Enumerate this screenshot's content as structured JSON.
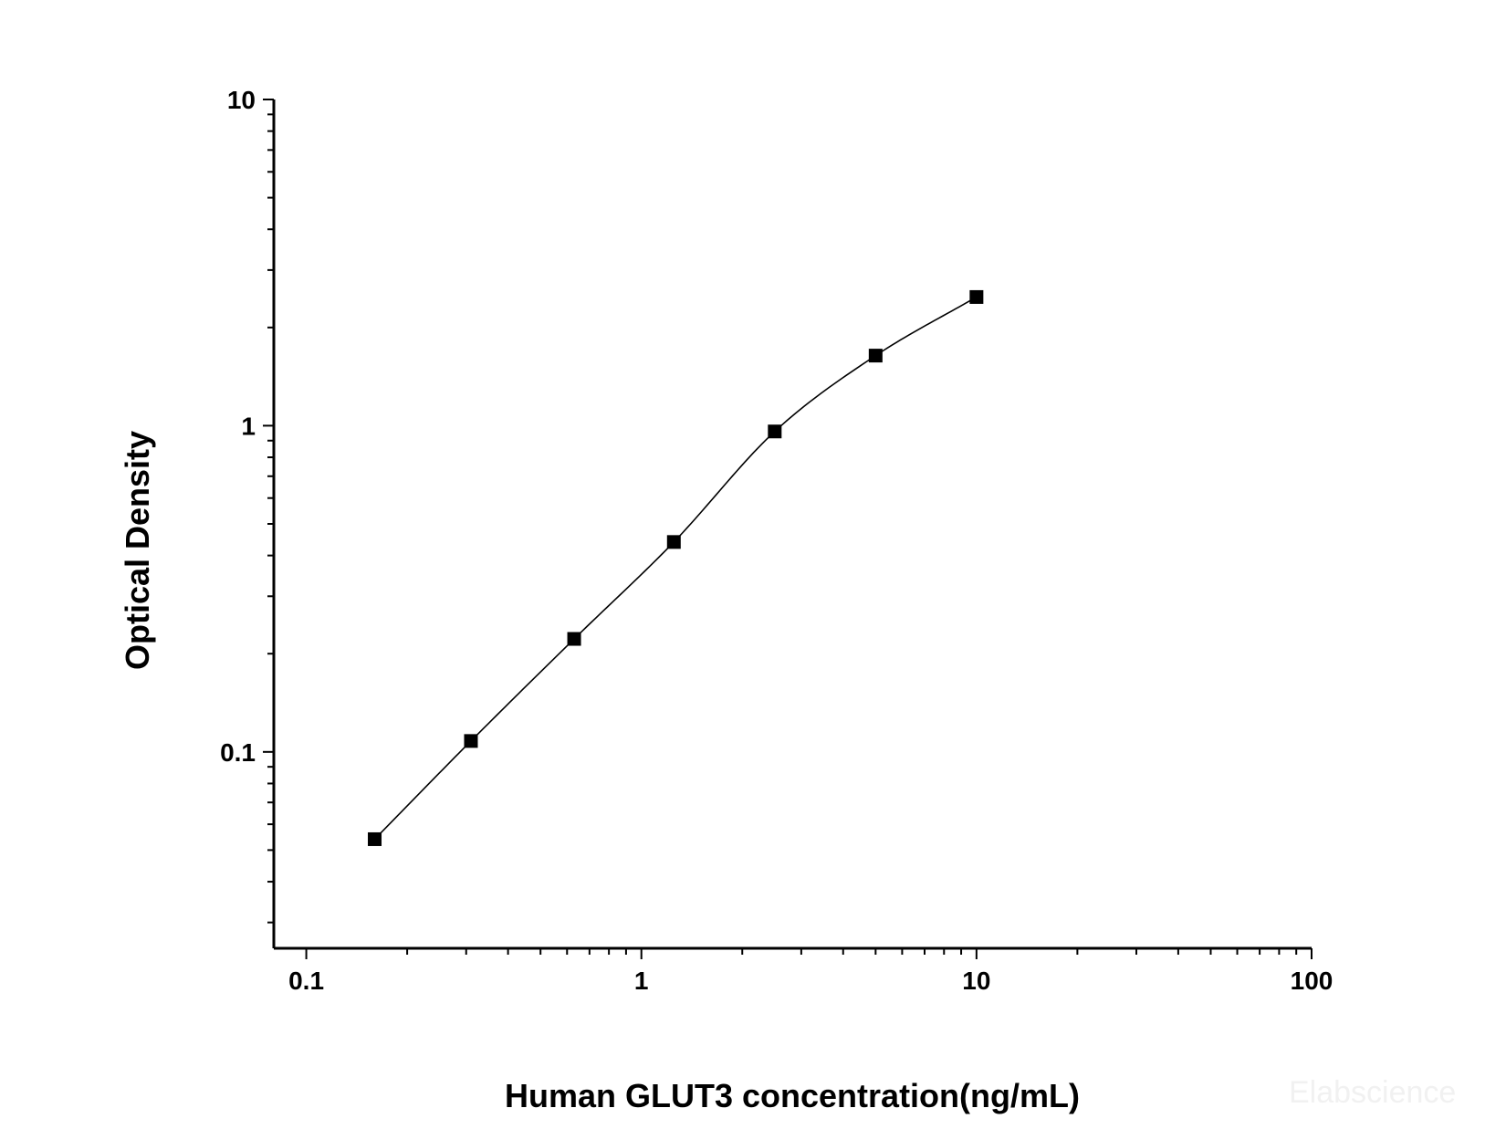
{
  "chart_data": {
    "type": "scatter",
    "xlabel": "Human GLUT3 concentration(ng/mL)",
    "ylabel": "Optical Density",
    "xscale": "log",
    "yscale": "log",
    "xlim": [
      0.08,
      100
    ],
    "ylim": [
      0.025,
      10
    ],
    "x_ticks": [
      {
        "value": 0.1,
        "label": "0.1"
      },
      {
        "value": 1,
        "label": "1"
      },
      {
        "value": 10,
        "label": "10"
      },
      {
        "value": 100,
        "label": "100"
      }
    ],
    "y_ticks": [
      {
        "value": 0.1,
        "label": "0.1"
      },
      {
        "value": 1,
        "label": "1"
      },
      {
        "value": 10,
        "label": "10"
      }
    ],
    "grid": false,
    "legend": "none",
    "fitted_curve": true,
    "marker": "square",
    "colors": {
      "marker": "#000000",
      "curve": "#000000",
      "axis": "#000000"
    },
    "series": [
      {
        "x": [
          0.16,
          0.31,
          0.63,
          1.25,
          2.5,
          5,
          10
        ],
        "y": [
          0.054,
          0.108,
          0.222,
          0.44,
          0.96,
          1.64,
          2.48
        ]
      }
    ]
  },
  "watermark": "Elabscience"
}
